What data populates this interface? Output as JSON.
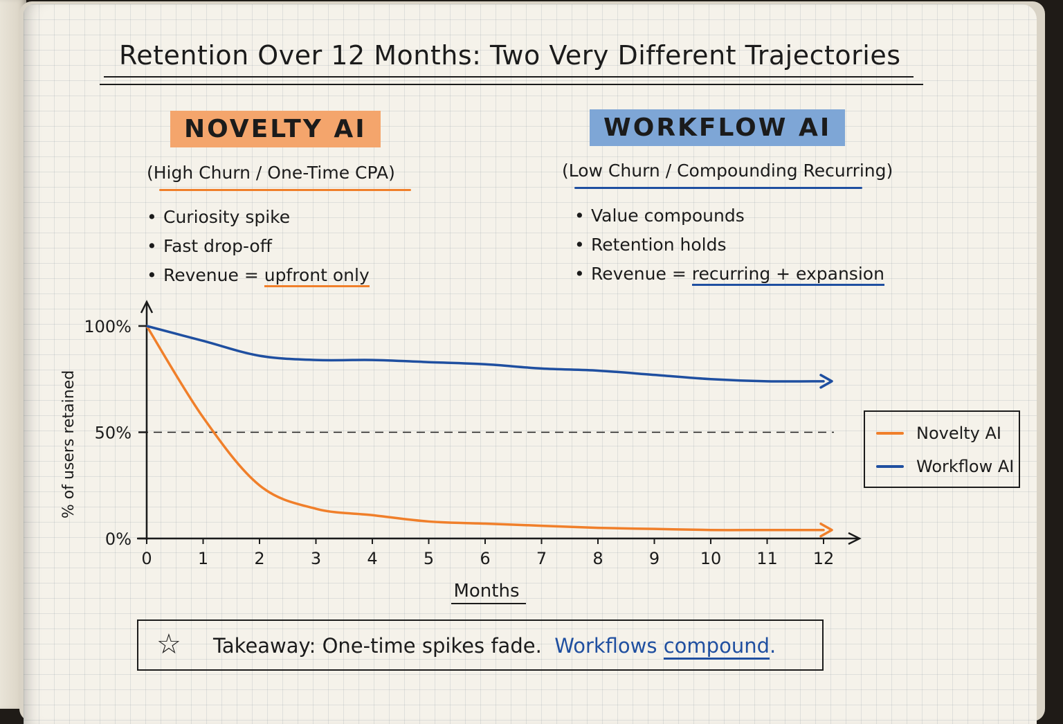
{
  "title": "Retention Over 12 Months: Two Very Different Trajectories",
  "novelty": {
    "heading": "NOVELTY AI",
    "subtitle": "(High Churn / One-Time CPA)",
    "bullets": [
      "Curiosity spike",
      "Fast drop-off",
      "Revenue = "
    ],
    "bullet3_emphasis": "upfront only"
  },
  "workflow": {
    "heading": "WORKFLOW AI",
    "subtitle": "(Low Churn / Compounding Recurring)",
    "bullets": [
      "Value compounds",
      "Retention holds",
      "Revenue = "
    ],
    "bullet3_emphasis": "recurring + expansion"
  },
  "takeaway": {
    "icon": "star-icon",
    "lead": "Takeaway: One-time spikes fade.",
    "blue_word": "Workflows",
    "emphasis_word": "compound",
    "end": "."
  },
  "colors": {
    "novelty": "#f07f2a",
    "workflow": "#1f4fa0",
    "novelty_highlight": "#f4a56c",
    "workflow_highlight": "#7ea6d6",
    "ink": "#1b1b1b"
  },
  "chart_data": {
    "type": "line",
    "title": "",
    "xlabel": "Months",
    "ylabel": "% of users retained",
    "x": [
      0,
      1,
      2,
      3,
      4,
      5,
      6,
      7,
      8,
      9,
      10,
      11,
      12
    ],
    "x_ticks": [
      "0",
      "1",
      "2",
      "3",
      "4",
      "5",
      "6",
      "7",
      "8",
      "9",
      "10",
      "11",
      "12"
    ],
    "y_ticks": [
      "0%",
      "50%",
      "100%"
    ],
    "y_tick_values": [
      0,
      50,
      100
    ],
    "xlim": [
      0,
      12
    ],
    "ylim": [
      0,
      100
    ],
    "reference_line": {
      "y": 50,
      "style": "dashed"
    },
    "grid": false,
    "legend_position": "right",
    "series": [
      {
        "name": "Novelty AI",
        "color": "#f07f2a",
        "values": [
          100,
          57,
          25,
          14,
          11,
          8,
          7,
          6,
          5,
          4.5,
          4,
          4,
          4
        ]
      },
      {
        "name": "Workflow AI",
        "color": "#1f4fa0",
        "values": [
          100,
          93,
          86,
          84,
          84,
          83,
          82,
          80,
          79,
          77,
          75,
          74,
          74
        ]
      }
    ]
  }
}
